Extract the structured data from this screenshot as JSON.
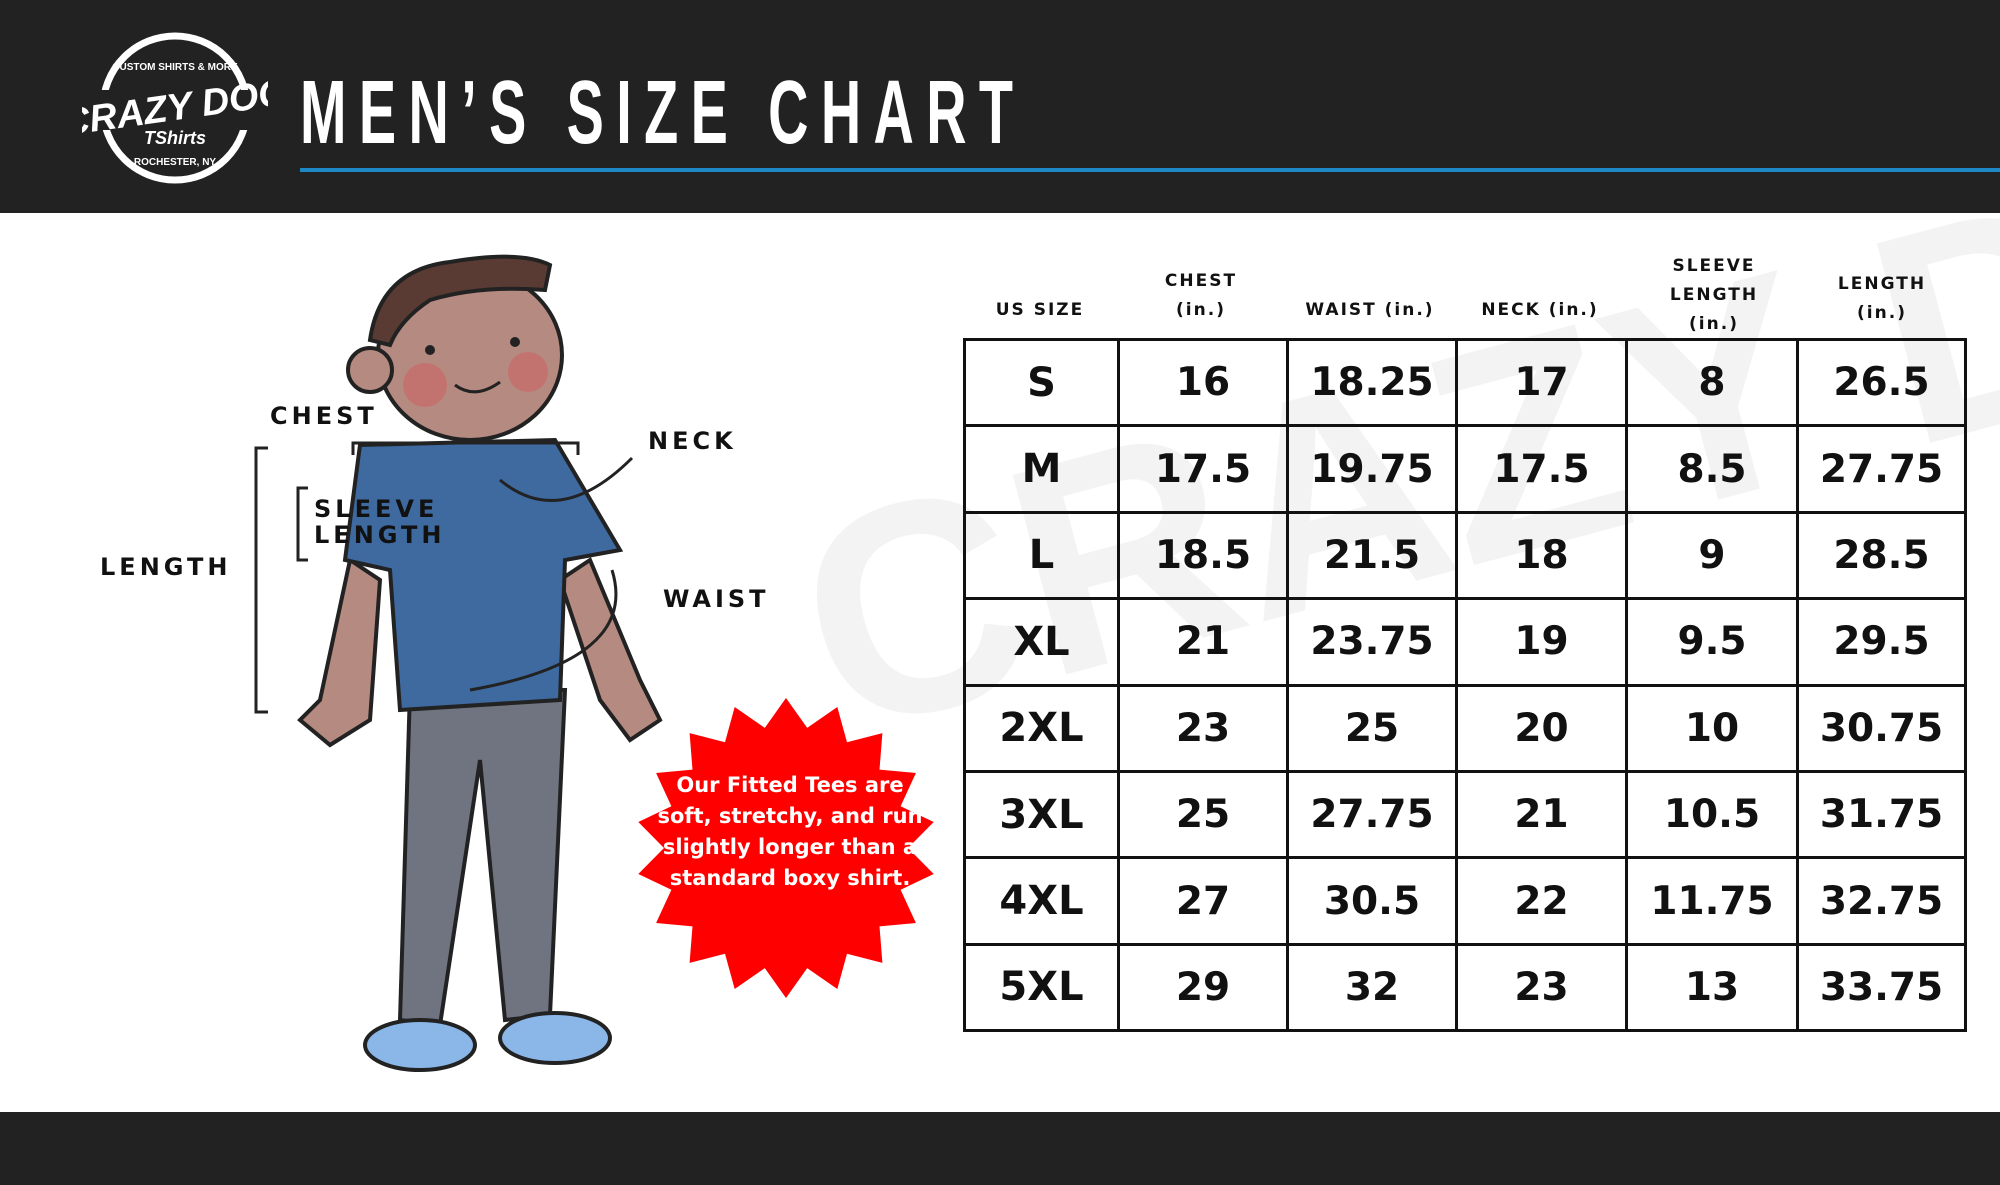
{
  "header": {
    "title": "MEN’S SIZE CHART",
    "logo": {
      "top": "CUSTOM SHIRTS & MORE",
      "main": "CRAZY DOG",
      "sub": "TShirts",
      "bottom": "ROCHESTER, NY"
    },
    "accent": "#1e88c7"
  },
  "table": {
    "headers": [
      [
        "US SIZE"
      ],
      [
        "CHEST",
        "(in.)"
      ],
      [
        "WAIST (in.)"
      ],
      [
        "NECK (in.)"
      ],
      [
        "SLEEVE",
        "LENGTH",
        "(in.)"
      ],
      [
        "LENGTH",
        "(in.)"
      ]
    ],
    "rows": [
      [
        "S",
        "16",
        "18.25",
        "17",
        "8",
        "26.5"
      ],
      [
        "M",
        "17.5",
        "19.75",
        "17.5",
        "8.5",
        "27.75"
      ],
      [
        "L",
        "18.5",
        "21.5",
        "18",
        "9",
        "28.5"
      ],
      [
        "XL",
        "21",
        "23.75",
        "19",
        "9.5",
        "29.5"
      ],
      [
        "2XL",
        "23",
        "25",
        "20",
        "10",
        "30.75"
      ],
      [
        "3XL",
        "25",
        "27.75",
        "21",
        "10.5",
        "31.75"
      ],
      [
        "4XL",
        "27",
        "30.5",
        "22",
        "11.75",
        "32.75"
      ],
      [
        "5XL",
        "29",
        "32",
        "23",
        "13",
        "33.75"
      ]
    ]
  },
  "figure": {
    "labels": {
      "chest": "CHEST",
      "neck": "NECK",
      "sleeve1": "SLEEVE",
      "sleeve2": "LENGTH",
      "length": "LENGTH",
      "waist": "WAIST"
    }
  },
  "callout": {
    "text": "Our Fitted Tees are soft, stretchy, and run slightly longer than a standard boxy shirt.",
    "color": "#ff0000"
  }
}
